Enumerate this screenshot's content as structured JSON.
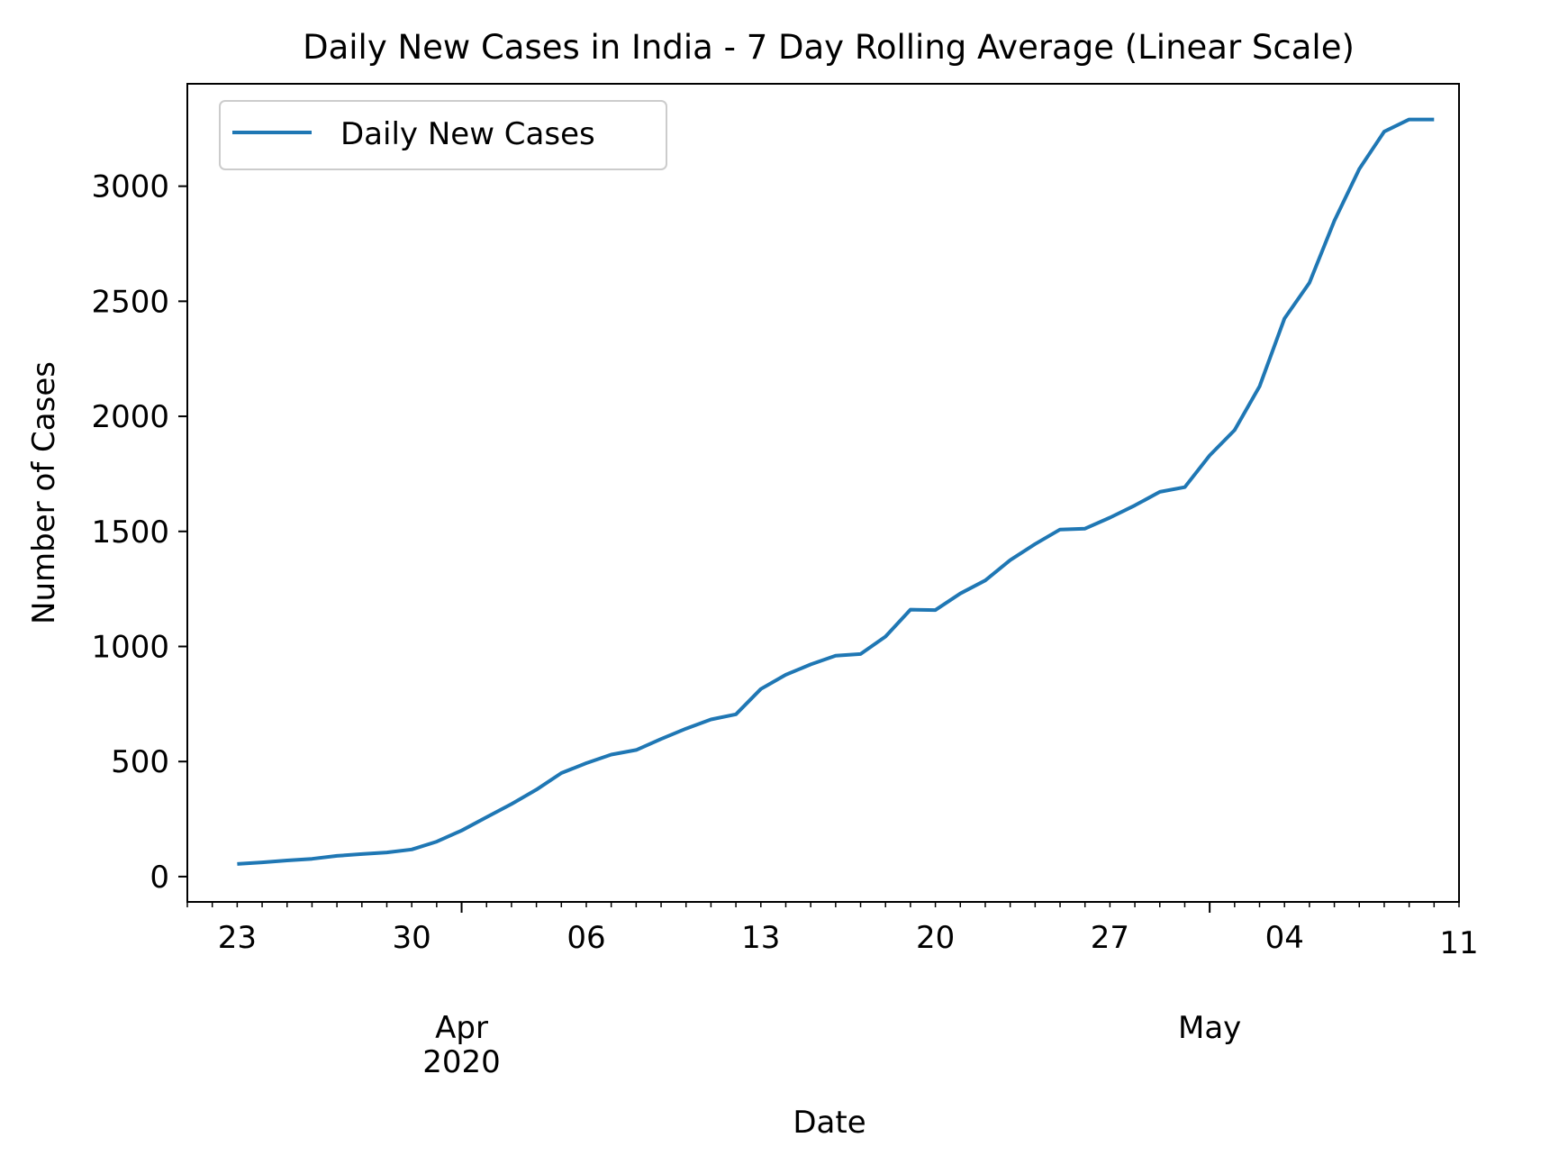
{
  "chart_data": {
    "type": "line",
    "title": "Daily New Cases in India - 7 Day Rolling Average (Linear Scale)",
    "xlabel": "Date",
    "ylabel": "Number of Cases",
    "xlim": [
      "2020-03-21",
      "2020-05-11"
    ],
    "ylim": [
      -110,
      3445
    ],
    "yticks": [
      0,
      500,
      1000,
      1500,
      2000,
      2500,
      3000
    ],
    "xticks": [
      {
        "date": "2020-03-23",
        "label": "23"
      },
      {
        "date": "2020-03-30",
        "label": "30"
      },
      {
        "date": "2020-04-06",
        "label": "06"
      },
      {
        "date": "2020-04-13",
        "label": "13"
      },
      {
        "date": "2020-04-20",
        "label": "20"
      },
      {
        "date": "2020-04-27",
        "label": "27"
      },
      {
        "date": "2020-05-04",
        "label": "04"
      },
      {
        "date": "2020-05-11",
        "label": "11"
      }
    ],
    "month_labels": [
      {
        "date": "2020-04-01",
        "label": "Apr",
        "year": "2020"
      },
      {
        "date": "2020-05-01",
        "label": "May",
        "year": ""
      }
    ],
    "legend": {
      "position": "upper-left"
    },
    "grid": false,
    "series": [
      {
        "name": "Daily New Cases",
        "color": "#1f77b4",
        "x": [
          "2020-03-23",
          "2020-03-24",
          "2020-03-25",
          "2020-03-26",
          "2020-03-27",
          "2020-03-28",
          "2020-03-29",
          "2020-03-30",
          "2020-03-31",
          "2020-04-01",
          "2020-04-02",
          "2020-04-03",
          "2020-04-04",
          "2020-04-05",
          "2020-04-06",
          "2020-04-07",
          "2020-04-08",
          "2020-04-09",
          "2020-04-10",
          "2020-04-11",
          "2020-04-12",
          "2020-04-13",
          "2020-04-14",
          "2020-04-15",
          "2020-04-16",
          "2020-04-17",
          "2020-04-18",
          "2020-04-19",
          "2020-04-20",
          "2020-04-21",
          "2020-04-22",
          "2020-04-23",
          "2020-04-24",
          "2020-04-25",
          "2020-04-26",
          "2020-04-27",
          "2020-04-28",
          "2020-04-29",
          "2020-04-30",
          "2020-05-01",
          "2020-05-02",
          "2020-05-03",
          "2020-05-04",
          "2020-05-05",
          "2020-05-06",
          "2020-05-07",
          "2020-05-08",
          "2020-05-09",
          "2020-05-10"
        ],
        "values": [
          55,
          62,
          70,
          77,
          90,
          98,
          105,
          118,
          152,
          200,
          258,
          315,
          378,
          450,
          493,
          530,
          550,
          598,
          643,
          683,
          705,
          815,
          877,
          922,
          960,
          967,
          1043,
          1160,
          1158,
          1230,
          1287,
          1375,
          1445,
          1508,
          1512,
          1560,
          1613,
          1672,
          1692,
          1830,
          1940,
          2130,
          2425,
          2580,
          2850,
          3075,
          3237,
          3290,
          3290
        ]
      }
    ]
  }
}
